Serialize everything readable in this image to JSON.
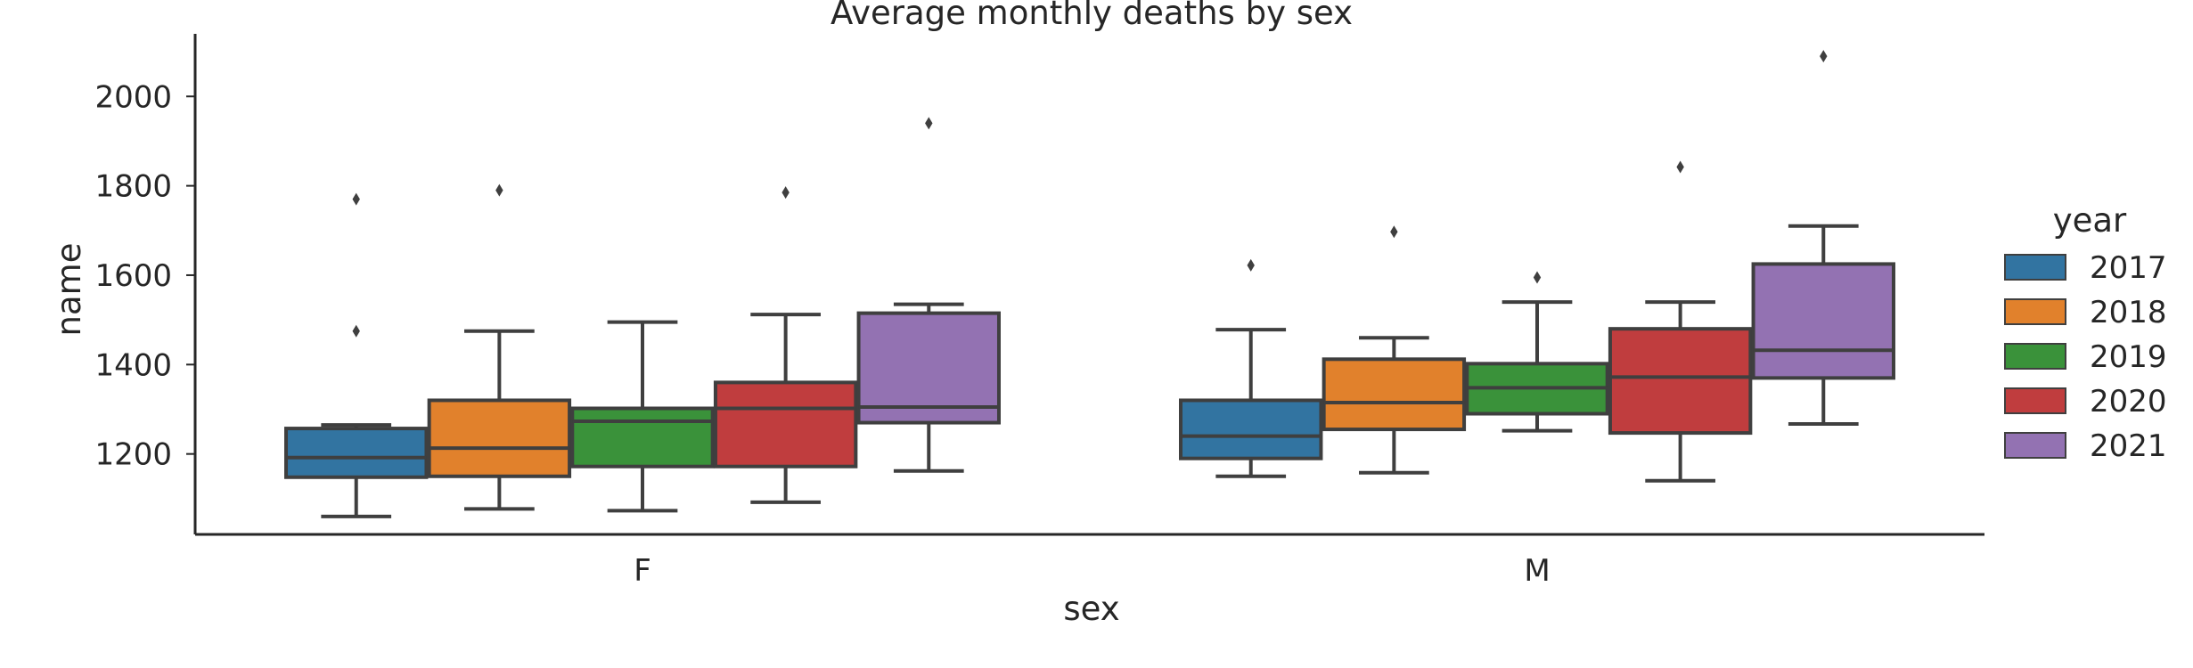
{
  "chart_data": {
    "type": "box",
    "title": "Average monthly deaths by sex",
    "xlabel": "sex",
    "ylabel": "name",
    "categories": [
      "F",
      "M"
    ],
    "ylim": [
      1020,
      2140
    ],
    "yticks": [
      1200,
      1400,
      1600,
      1800,
      2000
    ],
    "grid": false,
    "legend": {
      "title": "year",
      "placement": "right"
    },
    "colors": [
      "#3274a1",
      "#e1812c",
      "#3a923a",
      "#c03d3e",
      "#9372b2"
    ],
    "series": [
      {
        "name": "2017",
        "boxes": [
          {
            "whisker_low": 1060,
            "q1": 1148,
            "median": 1192,
            "q3": 1257,
            "whisker_high": 1265,
            "outliers": [
              1475,
              1770
            ]
          },
          {
            "whisker_low": 1150,
            "q1": 1190,
            "median": 1240,
            "q3": 1320,
            "whisker_high": 1478,
            "outliers": [
              1622
            ]
          }
        ]
      },
      {
        "name": "2018",
        "boxes": [
          {
            "whisker_low": 1077,
            "q1": 1150,
            "median": 1213,
            "q3": 1320,
            "whisker_high": 1475,
            "outliers": [
              1790
            ]
          },
          {
            "whisker_low": 1158,
            "q1": 1255,
            "median": 1315,
            "q3": 1412,
            "whisker_high": 1460,
            "outliers": [
              1697
            ]
          }
        ]
      },
      {
        "name": "2019",
        "boxes": [
          {
            "whisker_low": 1073,
            "q1": 1172,
            "median": 1273,
            "q3": 1302,
            "whisker_high": 1495,
            "outliers": []
          },
          {
            "whisker_low": 1252,
            "q1": 1290,
            "median": 1348,
            "q3": 1402,
            "whisker_high": 1540,
            "outliers": [
              1595
            ]
          }
        ]
      },
      {
        "name": "2020",
        "boxes": [
          {
            "whisker_low": 1092,
            "q1": 1172,
            "median": 1302,
            "q3": 1360,
            "whisker_high": 1512,
            "outliers": [
              1785
            ]
          },
          {
            "whisker_low": 1140,
            "q1": 1247,
            "median": 1372,
            "q3": 1480,
            "whisker_high": 1540,
            "outliers": [
              1842
            ]
          }
        ]
      },
      {
        "name": "2021",
        "boxes": [
          {
            "whisker_low": 1162,
            "q1": 1270,
            "median": 1305,
            "q3": 1515,
            "whisker_high": 1535,
            "outliers": [
              1940
            ]
          },
          {
            "whisker_low": 1267,
            "q1": 1370,
            "median": 1432,
            "q3": 1625,
            "whisker_high": 1710,
            "outliers": [
              2090
            ]
          }
        ]
      }
    ]
  }
}
